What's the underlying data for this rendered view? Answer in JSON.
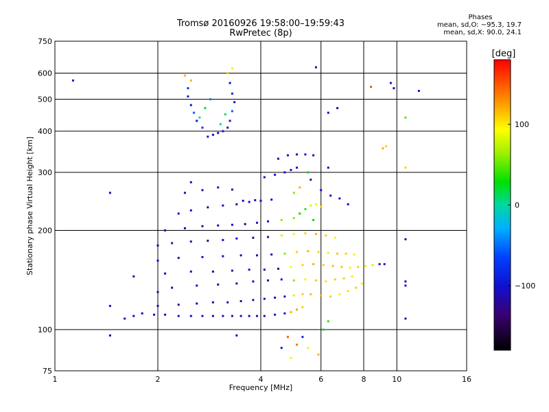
{
  "header": {
    "title_line1": "Tromsø 20160926 19:58:00–19:59:43",
    "title_line2": "RwPretec (8p)"
  },
  "phase_info": {
    "heading": "Phases",
    "line_o": "mean, sd,O: −95.3, 19.7",
    "line_x": "mean, sd,X:  90.0, 24.1"
  },
  "colorbar": {
    "unit": "[deg]",
    "ticks": [
      {
        "label": "100",
        "value": 100
      },
      {
        "label": "0",
        "value": 0
      },
      {
        "label": "−100",
        "value": -100
      }
    ],
    "range": [
      -180,
      180
    ]
  },
  "chart_data": {
    "type": "scatter",
    "title": "Tromsø 20160926 19:58:00–19:59:43",
    "subtitle": "RwPretec (8p)",
    "xlabel": "Frequency [MHz]",
    "ylabel": "Stationary phase Virtual Height [km]",
    "x_scale": "log",
    "y_scale": "log",
    "xlim": [
      1,
      16
    ],
    "ylim": [
      75,
      750
    ],
    "grid": true,
    "x_ticks": [
      1,
      2,
      4,
      6,
      8,
      10,
      16
    ],
    "x_tick_labels": [
      "1",
      "2",
      "4",
      "6",
      "8",
      "10",
      "16"
    ],
    "y_ticks": [
      75,
      100,
      200,
      300,
      400,
      500,
      600,
      750
    ],
    "y_tick_labels": [
      "75",
      "100",
      "200",
      "300",
      "400",
      "500",
      "600",
      "750"
    ],
    "color_by": "phase_deg",
    "series": [
      {
        "name": "",
        "points": [
          [
            1.6,
            108,
            -100
          ],
          [
            1.7,
            110,
            -110
          ],
          [
            1.8,
            112,
            -105
          ],
          [
            1.95,
            111,
            -100
          ],
          [
            2.1,
            111,
            -105
          ],
          [
            2.3,
            110,
            -100
          ],
          [
            2.5,
            110,
            -105
          ],
          [
            2.7,
            110,
            -100
          ],
          [
            2.9,
            110,
            -110
          ],
          [
            3.1,
            110,
            -105
          ],
          [
            3.3,
            110,
            -100
          ],
          [
            3.5,
            110,
            -100
          ],
          [
            3.7,
            110,
            -105
          ],
          [
            3.9,
            110,
            -100
          ],
          [
            4.1,
            110,
            -110
          ],
          [
            4.4,
            111,
            -100
          ],
          [
            4.7,
            112,
            -95
          ],
          [
            4.9,
            113,
            120
          ],
          [
            5.1,
            115,
            125
          ],
          [
            5.3,
            117,
            110
          ],
          [
            2.0,
            118,
            -110
          ],
          [
            2.3,
            119,
            -130
          ],
          [
            2.6,
            120,
            -110
          ],
          [
            2.9,
            121,
            -120
          ],
          [
            3.2,
            121,
            -100
          ],
          [
            3.5,
            122,
            -130
          ],
          [
            3.8,
            123,
            -110
          ],
          [
            4.1,
            124,
            -100
          ],
          [
            4.4,
            125,
            -120
          ],
          [
            4.7,
            126,
            -100
          ],
          [
            5.0,
            127,
            80
          ],
          [
            5.3,
            128,
            110
          ],
          [
            5.6,
            128,
            115
          ],
          [
            6.0,
            127,
            120
          ],
          [
            6.4,
            126,
            110
          ],
          [
            6.8,
            128,
            100
          ],
          [
            7.2,
            131,
            105
          ],
          [
            7.6,
            134,
            110
          ],
          [
            7.9,
            138,
            100
          ],
          [
            2.0,
            130,
            -120
          ],
          [
            2.2,
            134,
            -130
          ],
          [
            2.6,
            136,
            -110
          ],
          [
            3.0,
            137,
            -130
          ],
          [
            3.4,
            138,
            -110
          ],
          [
            3.8,
            140,
            -100
          ],
          [
            4.2,
            141,
            -110
          ],
          [
            4.6,
            142,
            -90
          ],
          [
            5.0,
            141,
            60
          ],
          [
            5.4,
            142,
            100
          ],
          [
            5.8,
            141,
            110
          ],
          [
            6.2,
            140,
            105
          ],
          [
            6.6,
            142,
            110
          ],
          [
            7.0,
            143,
            110
          ],
          [
            7.4,
            145,
            100
          ],
          [
            2.1,
            148,
            -110
          ],
          [
            2.5,
            150,
            -100
          ],
          [
            2.9,
            150,
            -130
          ],
          [
            3.3,
            151,
            -110
          ],
          [
            3.7,
            152,
            -100
          ],
          [
            4.1,
            152,
            -110
          ],
          [
            4.5,
            153,
            -120
          ],
          [
            4.9,
            155,
            90
          ],
          [
            5.3,
            157,
            110
          ],
          [
            5.7,
            158,
            120
          ],
          [
            6.1,
            157,
            110
          ],
          [
            6.5,
            156,
            115
          ],
          [
            6.9,
            155,
            110
          ],
          [
            7.3,
            154,
            100
          ],
          [
            7.7,
            155,
            110
          ],
          [
            8.1,
            156,
            100
          ],
          [
            8.5,
            157,
            80
          ],
          [
            8.9,
            158,
            -100
          ],
          [
            9.2,
            158,
            -90
          ],
          [
            2.0,
            162,
            -110
          ],
          [
            2.3,
            165,
            -130
          ],
          [
            2.7,
            166,
            -100
          ],
          [
            3.1,
            167,
            -110
          ],
          [
            3.5,
            168,
            -120
          ],
          [
            3.9,
            168,
            -100
          ],
          [
            4.3,
            169,
            -110
          ],
          [
            4.7,
            170,
            60
          ],
          [
            5.1,
            172,
            110
          ],
          [
            5.5,
            173,
            120
          ],
          [
            5.9,
            172,
            110
          ],
          [
            6.3,
            171,
            100
          ],
          [
            6.7,
            170,
            115
          ],
          [
            7.1,
            170,
            110
          ],
          [
            7.5,
            169,
            100
          ],
          [
            2.0,
            180,
            -120
          ],
          [
            2.2,
            183,
            -100
          ],
          [
            2.5,
            185,
            -110
          ],
          [
            2.8,
            186,
            -130
          ],
          [
            3.1,
            187,
            -110
          ],
          [
            3.4,
            189,
            -100
          ],
          [
            3.8,
            190,
            -130
          ],
          [
            4.2,
            191,
            -110
          ],
          [
            4.6,
            193,
            80
          ],
          [
            5.0,
            195,
            100
          ],
          [
            5.4,
            196,
            110
          ],
          [
            5.8,
            195,
            120
          ],
          [
            6.2,
            193,
            110
          ],
          [
            6.6,
            190,
            100
          ],
          [
            2.1,
            200,
            -110
          ],
          [
            2.4,
            203,
            -100
          ],
          [
            2.7,
            206,
            -120
          ],
          [
            3.0,
            207,
            -110
          ],
          [
            3.3,
            208,
            -100
          ],
          [
            3.6,
            209,
            -130
          ],
          [
            3.9,
            211,
            -110
          ],
          [
            4.2,
            213,
            -100
          ],
          [
            4.6,
            215,
            60
          ],
          [
            5.0,
            218,
            60
          ],
          [
            5.2,
            225,
            30
          ],
          [
            5.4,
            232,
            40
          ],
          [
            5.6,
            238,
            80
          ],
          [
            5.8,
            240,
            90
          ],
          [
            6.0,
            236,
            110
          ],
          [
            2.3,
            225,
            -110
          ],
          [
            2.5,
            230,
            -100
          ],
          [
            2.8,
            235,
            -130
          ],
          [
            3.1,
            238,
            -100
          ],
          [
            3.4,
            240,
            -110
          ],
          [
            3.7,
            244,
            -105
          ],
          [
            4.0,
            246,
            -100
          ],
          [
            4.3,
            248,
            -100
          ],
          [
            3.55,
            246,
            -110
          ],
          [
            3.85,
            247,
            -100
          ],
          [
            2.4,
            260,
            -110
          ],
          [
            2.7,
            265,
            -120
          ],
          [
            3.0,
            270,
            -100
          ],
          [
            3.3,
            266,
            -110
          ],
          [
            2.5,
            280,
            -105
          ],
          [
            4.1,
            290,
            -110
          ],
          [
            4.4,
            295,
            -100
          ],
          [
            4.7,
            300,
            -110
          ],
          [
            4.9,
            305,
            -120
          ],
          [
            5.1,
            310,
            -100
          ],
          [
            4.5,
            330,
            -110
          ],
          [
            4.8,
            338,
            -100
          ],
          [
            5.1,
            340,
            -110
          ],
          [
            5.4,
            340,
            -100
          ],
          [
            5.7,
            338,
            -110
          ],
          [
            2.8,
            385,
            -100
          ],
          [
            2.9,
            390,
            -110
          ],
          [
            3.0,
            395,
            -100
          ],
          [
            3.1,
            400,
            -100
          ],
          [
            3.2,
            410,
            -110
          ],
          [
            2.7,
            410,
            -80
          ],
          [
            2.6,
            430,
            -100
          ],
          [
            2.55,
            455,
            -60
          ],
          [
            2.5,
            480,
            -100
          ],
          [
            2.45,
            510,
            -90
          ],
          [
            2.45,
            540,
            -80
          ],
          [
            2.5,
            570,
            120
          ],
          [
            3.25,
            430,
            -100
          ],
          [
            3.3,
            460,
            -60
          ],
          [
            3.35,
            490,
            -100
          ],
          [
            3.3,
            520,
            -90
          ],
          [
            3.25,
            560,
            -100
          ],
          [
            3.2,
            600,
            110
          ],
          [
            3.3,
            620,
            100
          ],
          [
            2.4,
            590,
            120
          ],
          [
            2.65,
            440,
            0
          ],
          [
            2.75,
            470,
            20
          ],
          [
            2.85,
            500,
            -50
          ],
          [
            3.05,
            420,
            -10
          ],
          [
            3.15,
            450,
            10
          ],
          [
            5.8,
            625,
            -100
          ],
          [
            6.7,
            470,
            -110
          ],
          [
            6.3,
            455,
            -100
          ],
          [
            9.1,
            355,
            120
          ],
          [
            9.3,
            360,
            110
          ],
          [
            9.6,
            560,
            -100
          ],
          [
            9.8,
            540,
            -110
          ],
          [
            10.6,
            440,
            50
          ],
          [
            10.6,
            310,
            110
          ],
          [
            11.6,
            530,
            -100
          ],
          [
            8.4,
            545,
            150
          ],
          [
            1.13,
            570,
            -100
          ],
          [
            1.45,
            260,
            -110
          ],
          [
            1.7,
            145,
            -110
          ],
          [
            1.45,
            96,
            -120
          ],
          [
            1.45,
            118,
            -100
          ],
          [
            10.6,
            188,
            -110
          ],
          [
            10.6,
            140,
            -120
          ],
          [
            10.6,
            136,
            -100
          ],
          [
            10.6,
            108,
            -110
          ],
          [
            4.8,
            95,
            150
          ],
          [
            5.1,
            90,
            140
          ],
          [
            5.5,
            88,
            100
          ],
          [
            5.9,
            84,
            120
          ],
          [
            3.4,
            96,
            -100
          ],
          [
            6.1,
            100,
            20
          ],
          [
            6.3,
            106,
            40
          ],
          [
            4.6,
            88,
            -100
          ],
          [
            4.9,
            82,
            90
          ],
          [
            5.3,
            95,
            -90
          ],
          [
            5.0,
            260,
            60
          ],
          [
            5.2,
            270,
            120
          ],
          [
            5.6,
            285,
            -110
          ],
          [
            6.0,
            265,
            -100
          ],
          [
            6.4,
            255,
            -120
          ],
          [
            6.8,
            250,
            -100
          ],
          [
            7.2,
            240,
            -110
          ],
          [
            6.3,
            310,
            -100
          ],
          [
            5.5,
            300,
            30
          ],
          [
            5.7,
            215,
            30
          ]
        ]
      }
    ]
  }
}
